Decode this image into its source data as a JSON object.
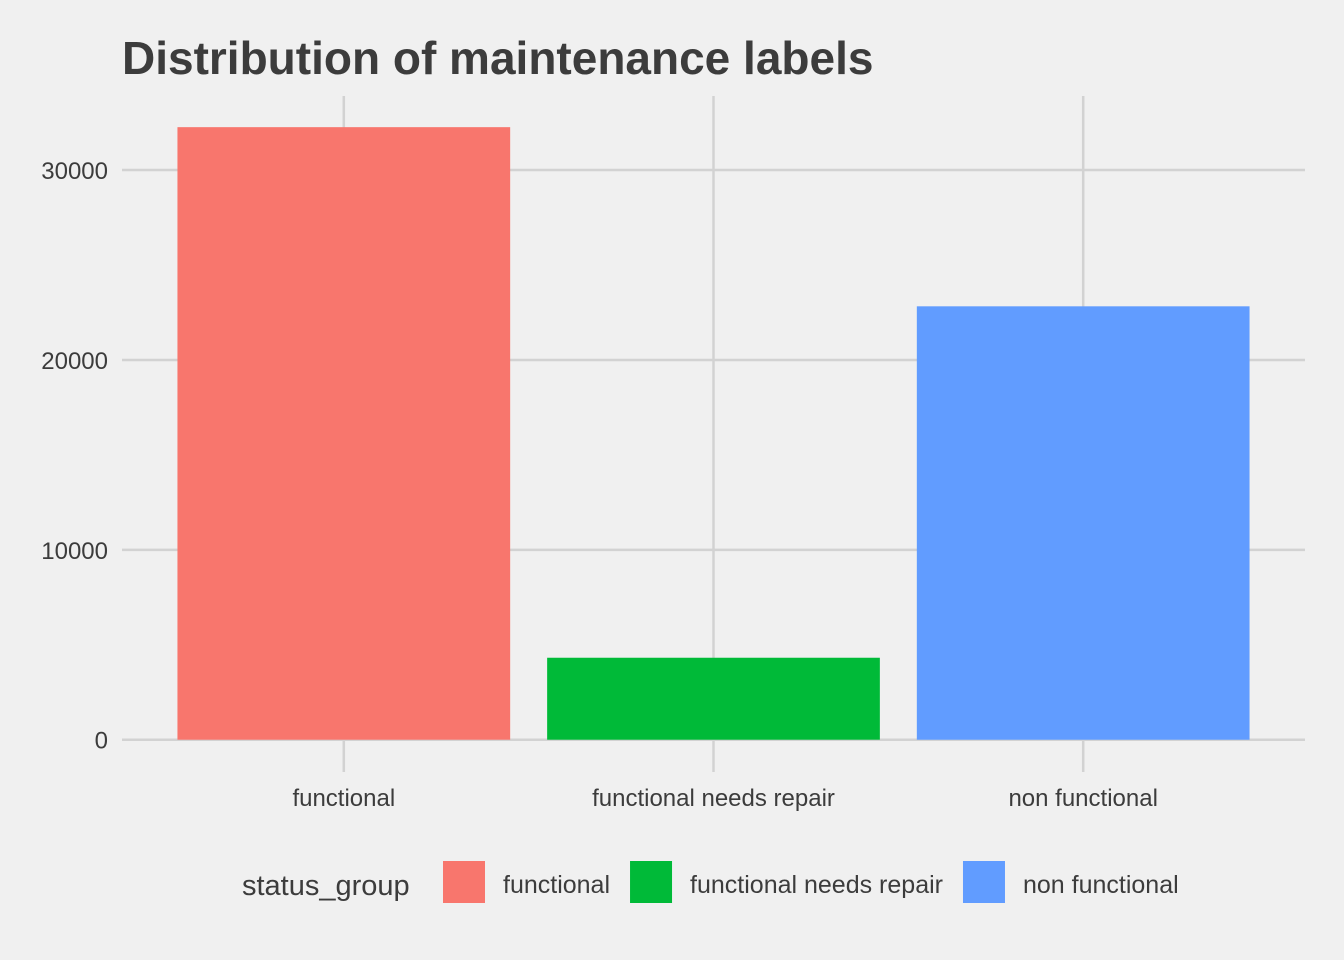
{
  "chart_data": {
    "type": "bar",
    "title": "Distribution of maintenance labels",
    "xlabel": "",
    "ylabel": "",
    "categories": [
      "functional",
      "functional needs repair",
      "non functional"
    ],
    "values": [
      32259,
      4317,
      22824
    ],
    "colors": [
      "#F8766D",
      "#00BA38",
      "#619CFF"
    ],
    "ylim": [
      -1700,
      33900
    ],
    "yticks": [
      0,
      10000,
      20000,
      30000
    ],
    "ytick_labels": [
      "0",
      "10000",
      "20000",
      "30000"
    ],
    "grid": true,
    "legend": {
      "title": "status_group",
      "position": "bottom",
      "entries": [
        "functional",
        "functional needs repair",
        "non functional"
      ]
    }
  }
}
